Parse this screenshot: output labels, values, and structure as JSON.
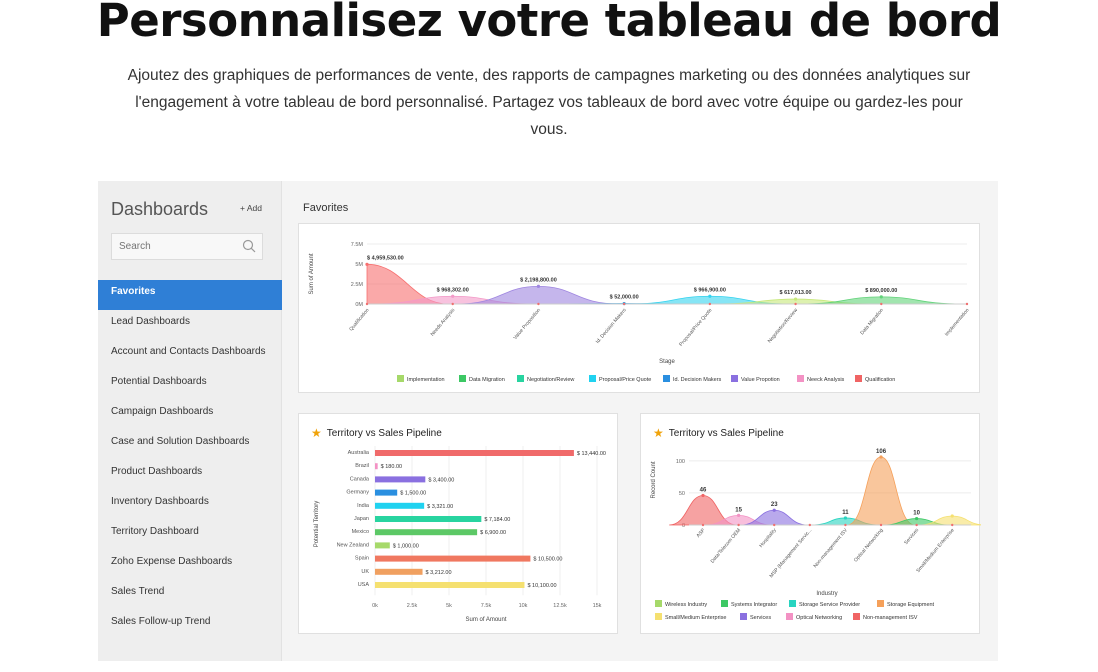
{
  "hero": {
    "title": "Personnalisez votre tableau de bord",
    "subtitle": "Ajoutez des graphiques de performances de vente, des rapports de campagnes marketing ou des données analytiques sur l'engagement à votre tableau de bord personnalisé. Partagez vos tableaux de bord avec votre équipe ou gardez-les pour vous."
  },
  "sidebar": {
    "title": "Dashboards",
    "add_label": "+ Add",
    "search_placeholder": "Search",
    "items": [
      {
        "label": "Favorites",
        "active": true
      },
      {
        "label": "Lead Dashboards"
      },
      {
        "label": "Account and Contacts Dashboards"
      },
      {
        "label": "Potential Dashboards"
      },
      {
        "label": "Campaign Dashboards"
      },
      {
        "label": "Case and Solution Dashboards"
      },
      {
        "label": "Product Dashboards"
      },
      {
        "label": "Inventory Dashboards"
      },
      {
        "label": "Territory Dashboard"
      },
      {
        "label": "Zoho Expense Dashboards"
      },
      {
        "label": "Sales Trend"
      },
      {
        "label": "Sales Follow-up Trend"
      }
    ]
  },
  "main": {
    "section_title": "Favorites",
    "cards": {
      "left_title": "Territory vs Sales Pipeline",
      "right_title": "Territory vs Sales Pipeline"
    }
  },
  "chart_data": [
    {
      "type": "area",
      "title": "",
      "xlabel": "Stage",
      "ylabel": "Sum of Amount",
      "ylim": [
        0,
        7500000
      ],
      "yticks": [
        "0M",
        "2.5M",
        "5M",
        "7.5M"
      ],
      "categories": [
        "Qualification",
        "Needs Analysis",
        "Value Proposition",
        "Id. Decision Makers",
        "Proposal/Price Quote",
        "Negotiation/Review",
        "Data Migration",
        "Implementation"
      ],
      "series": [
        {
          "name": "Qualification",
          "color": "#f77070",
          "values": [
            4959530,
            0,
            0,
            0,
            0,
            0,
            0,
            0
          ],
          "label": "$ 4,959,530.00"
        },
        {
          "name": "Neeck Analysis",
          "color": "#f39ac8",
          "values": [
            0,
            968302,
            0,
            0,
            0,
            0,
            0,
            0
          ],
          "label": "$ 968,302.00"
        },
        {
          "name": "Value Propotion",
          "color": "#9f86e0",
          "values": [
            0,
            0,
            2198800,
            0,
            0,
            0,
            0,
            0
          ],
          "label": "$ 2,198,800.00"
        },
        {
          "name": "Id. Decision Makers",
          "color": "#2aa0e0",
          "values": [
            0,
            0,
            0,
            52000,
            0,
            0,
            0,
            0
          ],
          "label": "$ 52,000.00"
        },
        {
          "name": "Proposal/Price Quote",
          "color": "#35d3ef",
          "values": [
            0,
            0,
            0,
            0,
            966900,
            0,
            0,
            0
          ],
          "label": "$ 966,900.00"
        },
        {
          "name": "Negotiation/Review",
          "color": "#c7e87a",
          "values": [
            0,
            0,
            0,
            0,
            0,
            617013,
            0,
            0
          ],
          "label": "$ 617,013.00"
        },
        {
          "name": "Data Migration",
          "color": "#62d37a",
          "values": [
            0,
            0,
            0,
            0,
            0,
            0,
            890000,
            0
          ],
          "label": "$ 890,000.00"
        },
        {
          "name": "Implementation",
          "color": "#a6d96a",
          "values": [
            0,
            0,
            0,
            0,
            0,
            0,
            0,
            0
          ]
        }
      ],
      "legend": [
        {
          "name": "Implementation",
          "color": "#a6d96a"
        },
        {
          "name": "Data Migration",
          "color": "#3cc864"
        },
        {
          "name": "Negotiation/Review",
          "color": "#28d4a0"
        },
        {
          "name": "Proposal/Price Quote",
          "color": "#20d2f0"
        },
        {
          "name": "Id. Decision Makers",
          "color": "#2a8fe0"
        },
        {
          "name": "Value Propotion",
          "color": "#8a70e0"
        },
        {
          "name": "Neeck Analysis",
          "color": "#f392c4"
        },
        {
          "name": "Qualification",
          "color": "#f06464"
        }
      ],
      "legend_position": "bottom"
    },
    {
      "type": "bar",
      "orientation": "horizontal",
      "xlabel": "Sum of Amount",
      "ylabel": "Potential Territory",
      "xlim": [
        0,
        15000
      ],
      "xticks": [
        "0k",
        "2.5k",
        "5k",
        "7.5k",
        "10k",
        "12.5k",
        "15k"
      ],
      "categories": [
        "Australia",
        "Brazil",
        "Canada",
        "Germany",
        "India",
        "Japan",
        "Mexico",
        "New Zealand",
        "Spain",
        "UK",
        "USA"
      ],
      "values": [
        13440,
        180,
        3400,
        1500,
        3321,
        7184,
        6900,
        1000,
        10500,
        3212,
        10100
      ],
      "labels": [
        "$ 13,440.00",
        "$ 180.00",
        "$ 3,400.00",
        "$ 1,500.00",
        "$ 3,321.00",
        "$ 7,184.00",
        "$ 6,900.00",
        "$ 1,000.00",
        "$ 10,500.00",
        "$ 3,212.00",
        "$ 10,100.00"
      ],
      "colors": [
        "#f06a6a",
        "#f392c4",
        "#8a70e0",
        "#2a8fe0",
        "#20d2f0",
        "#28d4a0",
        "#5cc866",
        "#a6d96a",
        "#f07860",
        "#f0a060",
        "#f5e070"
      ]
    },
    {
      "type": "area",
      "xlabel": "Industry",
      "ylabel": "Record Count",
      "ylim": [
        0,
        120
      ],
      "yticks": [
        "0",
        "50",
        "100"
      ],
      "categories": [
        "ASP",
        "Data/Telecom OEM",
        "Hospitality",
        "MSP (Management Servic...",
        "Non-management ISV",
        "Optical Networking",
        "Services",
        "Small/Medium Enterprise"
      ],
      "series": [
        {
          "name": "Non-management ISV",
          "color": "#f06464",
          "values": [
            46,
            0,
            0,
            0,
            0,
            0,
            0,
            0
          ],
          "label": "46"
        },
        {
          "name": "Optical Networking",
          "color": "#f392c4",
          "values": [
            0,
            15,
            0,
            0,
            0,
            0,
            0,
            0
          ],
          "label": "15"
        },
        {
          "name": "Services",
          "color": "#8a70e0",
          "values": [
            0,
            0,
            23,
            0,
            0,
            0,
            0,
            0
          ],
          "label": "23"
        },
        {
          "name": "Storage Service Provider",
          "color": "#28d4c0",
          "values": [
            0,
            0,
            0,
            0,
            11,
            0,
            0,
            0
          ],
          "label": "11"
        },
        {
          "name": "Storage Equipment",
          "color": "#f5a05a",
          "values": [
            0,
            0,
            0,
            0,
            0,
            106,
            0,
            0
          ],
          "label": "106"
        },
        {
          "name": "Systems Integrator",
          "color": "#3cc864",
          "values": [
            0,
            0,
            0,
            0,
            0,
            0,
            10,
            0
          ],
          "label": "10"
        },
        {
          "name": "Small/Medium Enterprise",
          "color": "#f5e070",
          "values": [
            0,
            0,
            0,
            0,
            0,
            0,
            0,
            14
          ]
        }
      ],
      "legend": [
        {
          "name": "Wireless Industry",
          "color": "#a6d96a"
        },
        {
          "name": "Systems Integrator",
          "color": "#3cc864"
        },
        {
          "name": "Storage Service Provider",
          "color": "#28d4c0"
        },
        {
          "name": "Storage Equipment",
          "color": "#f5a05a"
        },
        {
          "name": "Small/Medium Enterprise",
          "color": "#f5e070"
        },
        {
          "name": "Services",
          "color": "#8a70e0"
        },
        {
          "name": "Optical Networking",
          "color": "#f392c4"
        },
        {
          "name": "Non-management ISV",
          "color": "#f06464"
        }
      ],
      "legend_position": "bottom"
    }
  ]
}
